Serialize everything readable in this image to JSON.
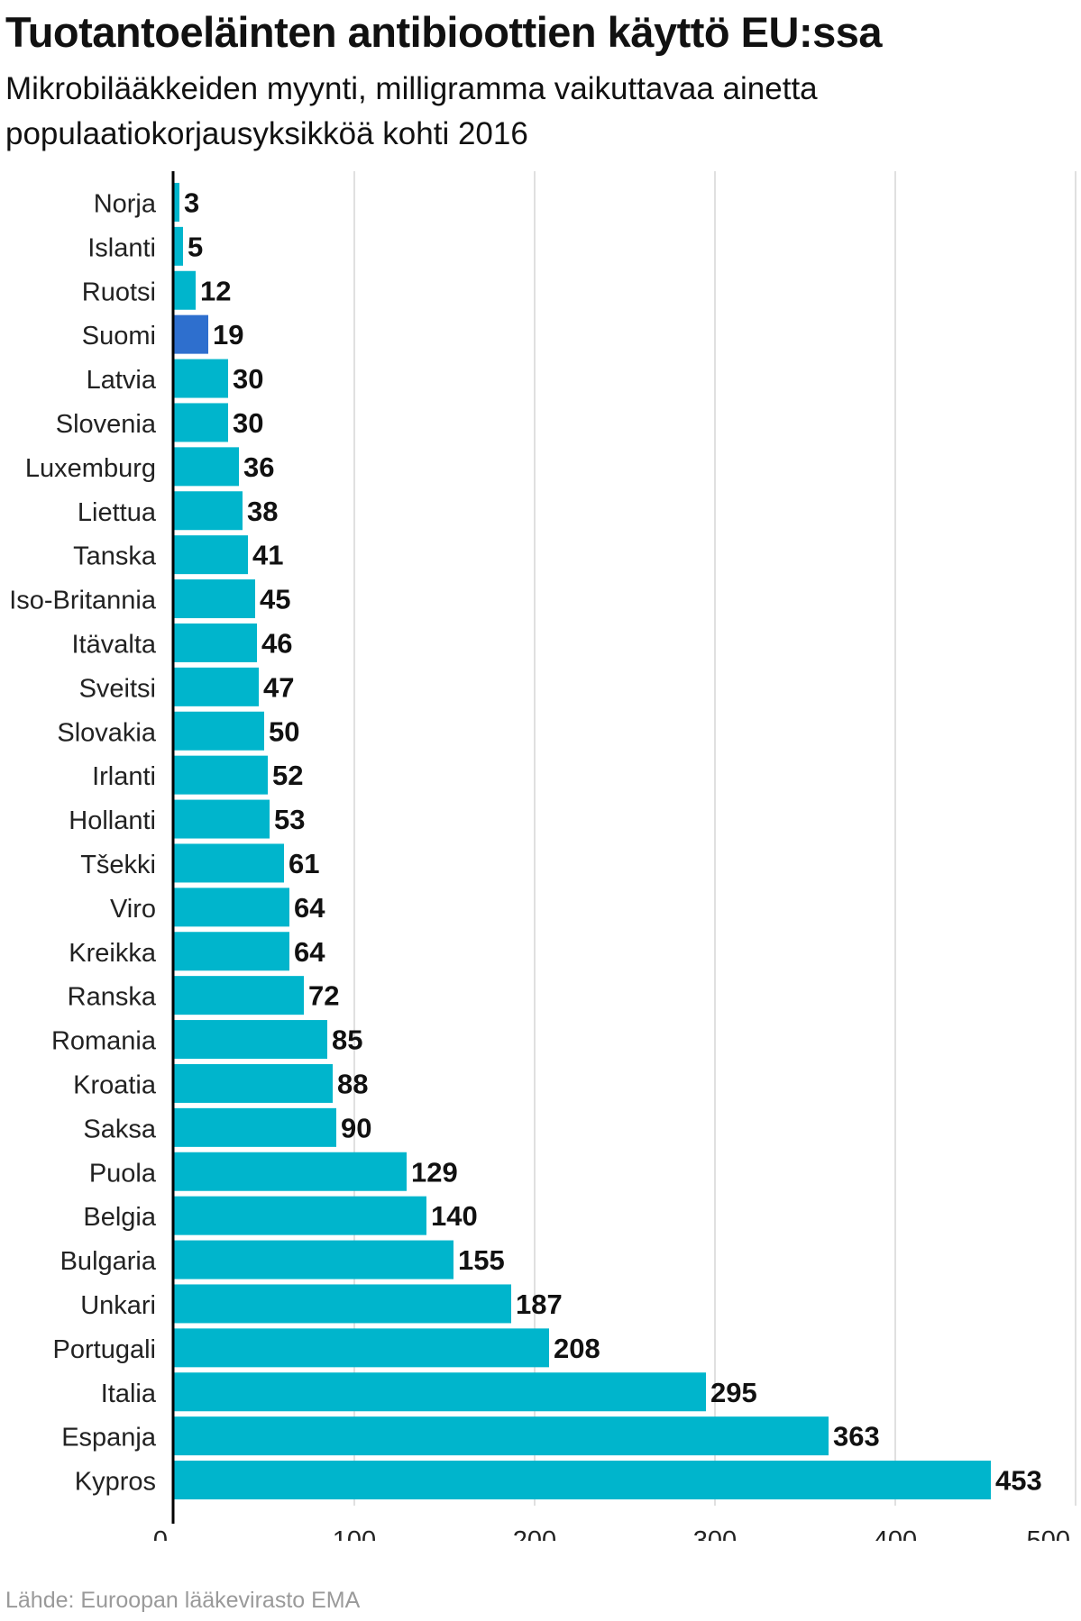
{
  "title": "Tuotantoeläinten antibioottien käyttö EU:ssa",
  "subtitle": "Mikrobilääkkeiden myynti, milligramma vaikuttavaa ainetta populaatiokorjausyksikköä kohti 2016",
  "source": "Lähde: Euroopan lääkevirasto EMA",
  "colors": {
    "bar": "#00b5cc",
    "highlight": "#2e6fce",
    "grid": "#d6d6d6",
    "axis": "#000000"
  },
  "chart_data": {
    "type": "bar",
    "orientation": "horizontal",
    "title": "Tuotantoeläinten antibioottien käyttö EU:ssa",
    "subtitle": "Mikrobilääkkeiden myynti, milligramma vaikuttavaa ainetta populaatiokorjausyksikköä kohti 2016",
    "categories": [
      "Norja",
      "Islanti",
      "Ruotsi",
      "Suomi",
      "Latvia",
      "Slovenia",
      "Luxemburg",
      "Liettua",
      "Tanska",
      "Iso-Britannia",
      "Itävalta",
      "Sveitsi",
      "Slovakia",
      "Irlanti",
      "Hollanti",
      "Tšekki",
      "Viro",
      "Kreikka",
      "Ranska",
      "Romania",
      "Kroatia",
      "Saksa",
      "Puola",
      "Belgia",
      "Bulgaria",
      "Unkari",
      "Portugali",
      "Italia",
      "Espanja",
      "Kypros"
    ],
    "values": [
      3,
      5,
      12,
      19,
      30,
      30,
      36,
      38,
      41,
      45,
      46,
      47,
      50,
      52,
      53,
      61,
      64,
      64,
      72,
      85,
      88,
      90,
      129,
      140,
      155,
      187,
      208,
      295,
      363,
      453
    ],
    "highlight": "Suomi",
    "xlim": [
      0,
      500
    ],
    "xticks": [
      0,
      100,
      200,
      300,
      400,
      500
    ],
    "grid": true,
    "legend": "none"
  }
}
